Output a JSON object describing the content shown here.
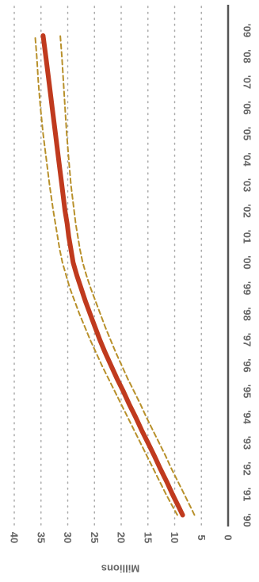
{
  "chart_data": {
    "type": "line",
    "orientation": "rotated",
    "ylabel": "Millions",
    "ylim": [
      0,
      40
    ],
    "y_ticks": [
      "0",
      "5",
      "10",
      "15",
      "20",
      "25",
      "30",
      "35",
      "40"
    ],
    "categories": [
      "'90",
      "'91",
      "'92",
      "'93",
      "'94",
      "'95",
      "'96",
      "'97",
      "'98",
      "'99",
      "'00",
      "'01",
      "'02",
      "'03",
      "'04",
      "'05",
      "'06",
      "'07",
      "'08",
      "'09"
    ],
    "x": [
      1990.2,
      1990.5,
      1991,
      1991.5,
      1992,
      1992.5,
      1993,
      1993.5,
      1994,
      1994.5,
      1995,
      1995.5,
      1996,
      1996.5,
      1997,
      1997.5,
      1998,
      1998.5,
      1999,
      1999.5,
      2000,
      2000.5,
      2001,
      2001.5,
      2002,
      2003,
      2004,
      2005,
      2006,
      2007,
      2008,
      2008.8
    ],
    "series": [
      {
        "role": "estimate",
        "color": "#c03a1e",
        "style": "solid",
        "values": [
          8.5,
          9.2,
          10.4,
          11.5,
          12.7,
          13.8,
          15.0,
          16.2,
          17.3,
          18.5,
          19.6,
          20.8,
          21.9,
          23.0,
          24.0,
          24.9,
          25.8,
          26.7,
          27.5,
          28.3,
          29.0,
          29.4,
          29.8,
          30.1,
          30.5,
          31.1,
          31.7,
          32.3,
          32.9,
          33.5,
          34.1,
          34.6
        ]
      },
      {
        "role": "upper-bound",
        "color": "#b8902a",
        "style": "dashed",
        "values": [
          9.5,
          10.3,
          11.6,
          12.8,
          14.0,
          15.2,
          16.4,
          17.6,
          18.8,
          20.0,
          21.2,
          22.4,
          23.6,
          24.7,
          25.8,
          26.8,
          27.8,
          28.7,
          29.6,
          30.3,
          31.0,
          31.5,
          31.9,
          32.3,
          32.7,
          33.4,
          34.0,
          34.6,
          35.1,
          35.5,
          35.8,
          36.1
        ]
      },
      {
        "role": "lower-bound",
        "color": "#b8902a",
        "style": "dashed",
        "values": [
          6.3,
          7.0,
          8.2,
          9.4,
          10.6,
          11.7,
          12.9,
          14.1,
          15.3,
          16.4,
          17.6,
          18.8,
          19.9,
          21.0,
          22.0,
          23.0,
          23.9,
          24.8,
          25.7,
          26.5,
          27.2,
          27.7,
          28.1,
          28.5,
          28.8,
          29.4,
          29.8,
          30.2,
          30.5,
          30.8,
          31.1,
          31.4
        ]
      }
    ],
    "grid": true,
    "grid_style": "dotted",
    "legend": "none"
  }
}
